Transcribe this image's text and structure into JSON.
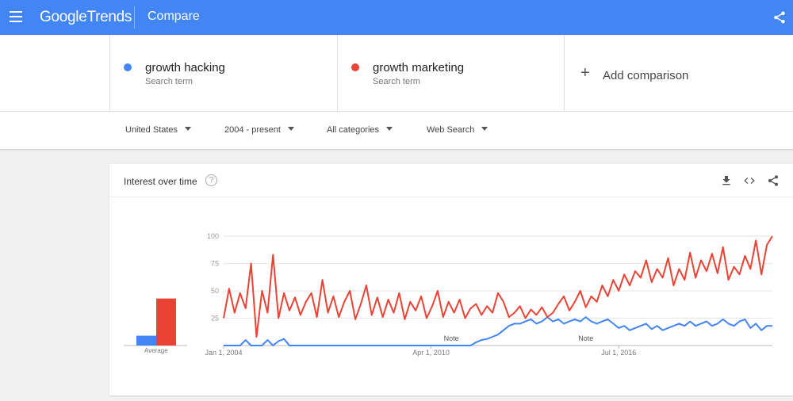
{
  "header": {
    "logo_bold": "Google",
    "logo_light": "Trends",
    "page_title": "Compare"
  },
  "terms": [
    {
      "name": "growth hacking",
      "sub": "Search term",
      "color": "#4285f4"
    },
    {
      "name": "growth marketing",
      "sub": "Search term",
      "color": "#ea4335"
    }
  ],
  "add_comparison": {
    "label": "Add comparison"
  },
  "filters": [
    "United States",
    "2004 - present",
    "All categories",
    "Web Search"
  ],
  "card": {
    "title": "Interest over time",
    "help": "?",
    "average_label": "Average"
  },
  "chart_data": {
    "type": "line",
    "ylim": [
      0,
      100
    ],
    "yticks": [
      "100",
      "75",
      "50",
      "25"
    ],
    "xticks": [
      {
        "label": "Jan 1, 2004",
        "t": 0.0
      },
      {
        "label": "Apr 1, 2010",
        "t": 0.378
      },
      {
        "label": "Jul 1, 2016",
        "t": 0.72
      }
    ],
    "notes": [
      {
        "label": "Note",
        "t": 0.415
      },
      {
        "label": "Note",
        "t": 0.66
      }
    ],
    "averages": [
      {
        "name": "growth hacking",
        "value": 9,
        "color": "#4285f4"
      },
      {
        "name": "growth marketing",
        "value": 43,
        "color": "#ea4335"
      }
    ],
    "series": [
      {
        "name": "growth marketing",
        "color": "#ea4335",
        "x": [
          0,
          0.01,
          0.02,
          0.03,
          0.04,
          0.05,
          0.06,
          0.07,
          0.08,
          0.09,
          0.1,
          0.11,
          0.12,
          0.13,
          0.14,
          0.15,
          0.16,
          0.17,
          0.18,
          0.19,
          0.2,
          0.21,
          0.22,
          0.23,
          0.24,
          0.25,
          0.26,
          0.27,
          0.28,
          0.29,
          0.3,
          0.31,
          0.32,
          0.33,
          0.34,
          0.35,
          0.36,
          0.37,
          0.38,
          0.39,
          0.4,
          0.41,
          0.42,
          0.43,
          0.44,
          0.45,
          0.46,
          0.47,
          0.48,
          0.49,
          0.5,
          0.51,
          0.52,
          0.53,
          0.54,
          0.55,
          0.56,
          0.57,
          0.58,
          0.59,
          0.6,
          0.61,
          0.62,
          0.63,
          0.64,
          0.65,
          0.66,
          0.67,
          0.68,
          0.69,
          0.7,
          0.71,
          0.72,
          0.73,
          0.74,
          0.75,
          0.76,
          0.77,
          0.78,
          0.79,
          0.8,
          0.81,
          0.82,
          0.83,
          0.84,
          0.85,
          0.86,
          0.87,
          0.88,
          0.89,
          0.9,
          0.91,
          0.92,
          0.93,
          0.94,
          0.95,
          0.96,
          0.97,
          0.98,
          0.99,
          1.0
        ],
        "values": [
          25,
          52,
          30,
          48,
          34,
          75,
          8,
          50,
          30,
          83,
          25,
          48,
          32,
          44,
          28,
          40,
          48,
          26,
          60,
          30,
          45,
          26,
          40,
          50,
          24,
          38,
          55,
          28,
          44,
          26,
          42,
          30,
          48,
          24,
          40,
          32,
          45,
          25,
          36,
          50,
          26,
          40,
          30,
          42,
          25,
          34,
          38,
          28,
          36,
          30,
          48,
          40,
          26,
          30,
          36,
          25,
          33,
          28,
          35,
          26,
          30,
          38,
          45,
          32,
          40,
          50,
          35,
          45,
          40,
          55,
          45,
          60,
          50,
          65,
          55,
          68,
          62,
          78,
          58,
          70,
          62,
          80,
          55,
          70,
          60,
          85,
          62,
          78,
          68,
          84,
          66,
          90,
          60,
          72,
          65,
          82,
          70,
          96,
          65,
          92,
          100
        ]
      },
      {
        "name": "growth hacking",
        "color": "#4285f4",
        "x": [
          0,
          0.01,
          0.02,
          0.03,
          0.04,
          0.05,
          0.06,
          0.07,
          0.08,
          0.09,
          0.1,
          0.11,
          0.12,
          0.13,
          0.14,
          0.15,
          0.16,
          0.17,
          0.18,
          0.19,
          0.2,
          0.21,
          0.22,
          0.23,
          0.24,
          0.25,
          0.26,
          0.27,
          0.28,
          0.29,
          0.3,
          0.31,
          0.32,
          0.33,
          0.34,
          0.35,
          0.36,
          0.37,
          0.38,
          0.39,
          0.4,
          0.41,
          0.42,
          0.43,
          0.44,
          0.45,
          0.46,
          0.47,
          0.48,
          0.49,
          0.5,
          0.51,
          0.52,
          0.53,
          0.54,
          0.55,
          0.56,
          0.57,
          0.58,
          0.59,
          0.6,
          0.61,
          0.62,
          0.63,
          0.64,
          0.65,
          0.66,
          0.67,
          0.68,
          0.69,
          0.7,
          0.71,
          0.72,
          0.73,
          0.74,
          0.75,
          0.76,
          0.77,
          0.78,
          0.79,
          0.8,
          0.81,
          0.82,
          0.83,
          0.84,
          0.85,
          0.86,
          0.87,
          0.88,
          0.89,
          0.9,
          0.91,
          0.92,
          0.93,
          0.94,
          0.95,
          0.96,
          0.97,
          0.98,
          0.99,
          1.0
        ],
        "values": [
          0,
          0,
          0,
          0,
          5,
          0,
          0,
          0,
          5,
          0,
          4,
          6,
          0,
          0,
          0,
          0,
          0,
          0,
          0,
          0,
          0,
          0,
          0,
          0,
          0,
          0,
          0,
          0,
          0,
          0,
          0,
          0,
          0,
          0,
          0,
          0,
          0,
          0,
          0,
          0,
          0,
          0,
          0,
          0,
          0,
          0,
          3,
          5,
          6,
          8,
          10,
          14,
          18,
          20,
          20,
          22,
          24,
          20,
          22,
          26,
          22,
          24,
          20,
          22,
          24,
          22,
          26,
          22,
          20,
          22,
          24,
          20,
          16,
          18,
          14,
          16,
          18,
          20,
          15,
          18,
          14,
          16,
          18,
          20,
          18,
          22,
          18,
          20,
          22,
          18,
          20,
          24,
          20,
          18,
          22,
          24,
          16,
          20,
          14,
          18,
          18
        ]
      }
    ]
  }
}
